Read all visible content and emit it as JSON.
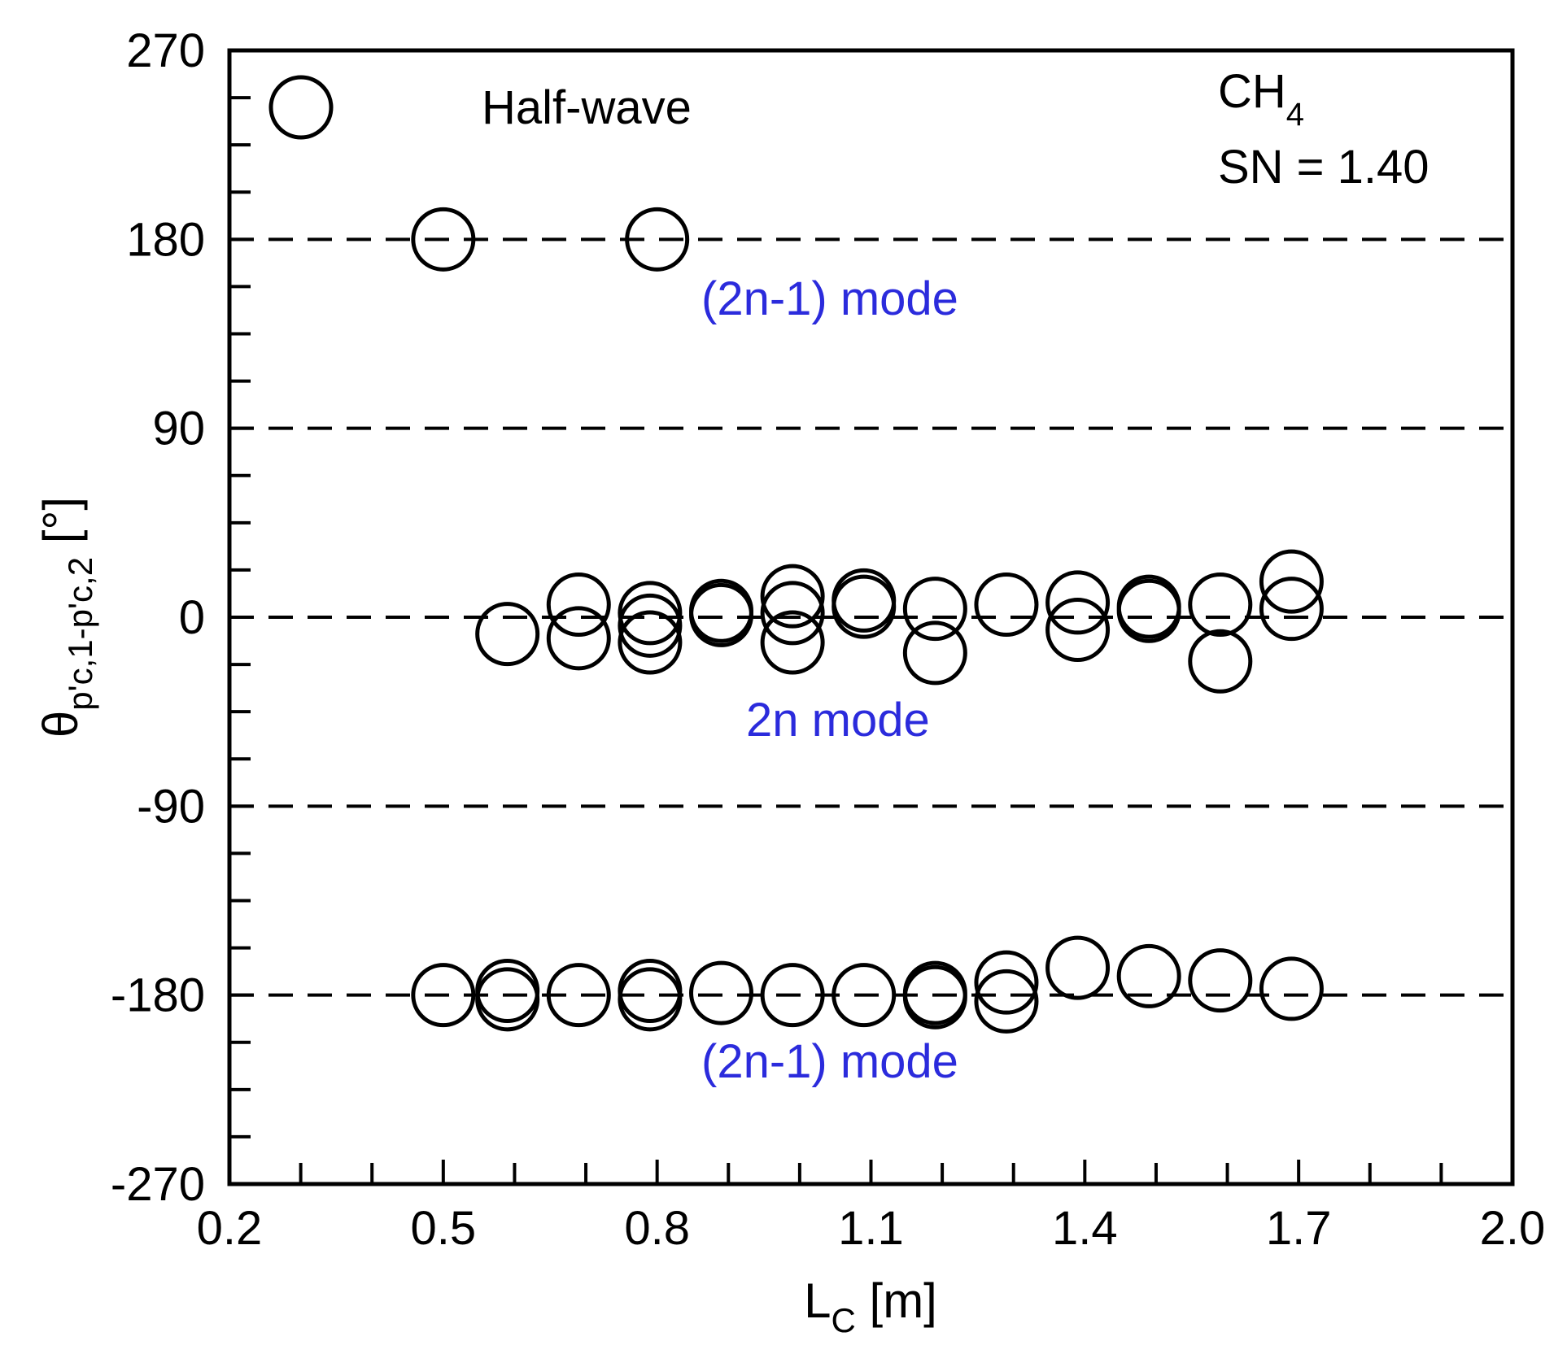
{
  "chart_data": {
    "type": "scatter",
    "title": "",
    "xlabel": "L",
    "xlabel_sub": "C",
    "xlabel_unit": " [m]",
    "ylabel": "θ",
    "ylabel_sub": "p'c,1-p'c,2",
    "ylabel_unit": " [°]",
    "xlim": [
      0.2,
      2.0
    ],
    "ylim": [
      -270,
      270
    ],
    "xticks": [
      0.2,
      0.5,
      0.8,
      1.1,
      1.4,
      1.7,
      2.0
    ],
    "xtick_labels": [
      "0.2",
      "0.5",
      "0.8",
      "1.1",
      "1.4",
      "1.7",
      "2.0"
    ],
    "yticks": [
      270,
      180,
      90,
      0,
      -90,
      -180,
      -270
    ],
    "ytick_labels": [
      "270",
      "180",
      "90",
      "0",
      "-90",
      "-180",
      "-270"
    ],
    "reference_lines": [
      180,
      90,
      0,
      -90,
      -180
    ],
    "legend": {
      "label": "Half-wave",
      "marker": "open-circle",
      "position": "top-left"
    },
    "annotations": {
      "fuel": "CH",
      "fuel_sub": "4",
      "swirl": "SN = 1.40",
      "mode_top": "(2n-1) mode",
      "mode_mid": "2n mode",
      "mode_bottom": "(2n-1) mode"
    },
    "series": [
      {
        "name": "Half-wave",
        "points": [
          [
            0.5,
            180
          ],
          [
            0.8,
            180
          ],
          [
            0.59,
            -8
          ],
          [
            0.69,
            6
          ],
          [
            0.69,
            -10
          ],
          [
            0.79,
            2
          ],
          [
            0.79,
            -4
          ],
          [
            0.79,
            -12
          ],
          [
            0.89,
            3
          ],
          [
            0.89,
            1
          ],
          [
            0.99,
            10
          ],
          [
            0.99,
            2
          ],
          [
            0.99,
            -12
          ],
          [
            1.09,
            8
          ],
          [
            1.09,
            5
          ],
          [
            1.19,
            4
          ],
          [
            1.19,
            -17
          ],
          [
            1.29,
            6
          ],
          [
            1.39,
            7
          ],
          [
            1.39,
            -6
          ],
          [
            1.49,
            5
          ],
          [
            1.49,
            3
          ],
          [
            1.59,
            6
          ],
          [
            1.59,
            -21
          ],
          [
            1.69,
            17
          ],
          [
            1.69,
            4
          ],
          [
            0.5,
            -180
          ],
          [
            0.59,
            -178
          ],
          [
            0.59,
            -182
          ],
          [
            0.69,
            -180
          ],
          [
            0.79,
            -178
          ],
          [
            0.79,
            -182
          ],
          [
            0.89,
            -179
          ],
          [
            0.99,
            -180
          ],
          [
            1.09,
            -180
          ],
          [
            1.19,
            -179
          ],
          [
            1.19,
            -181
          ],
          [
            1.29,
            -174
          ],
          [
            1.29,
            -183
          ],
          [
            1.39,
            -167
          ],
          [
            1.49,
            -171
          ],
          [
            1.59,
            -173
          ],
          [
            1.69,
            -177
          ]
        ]
      }
    ]
  }
}
